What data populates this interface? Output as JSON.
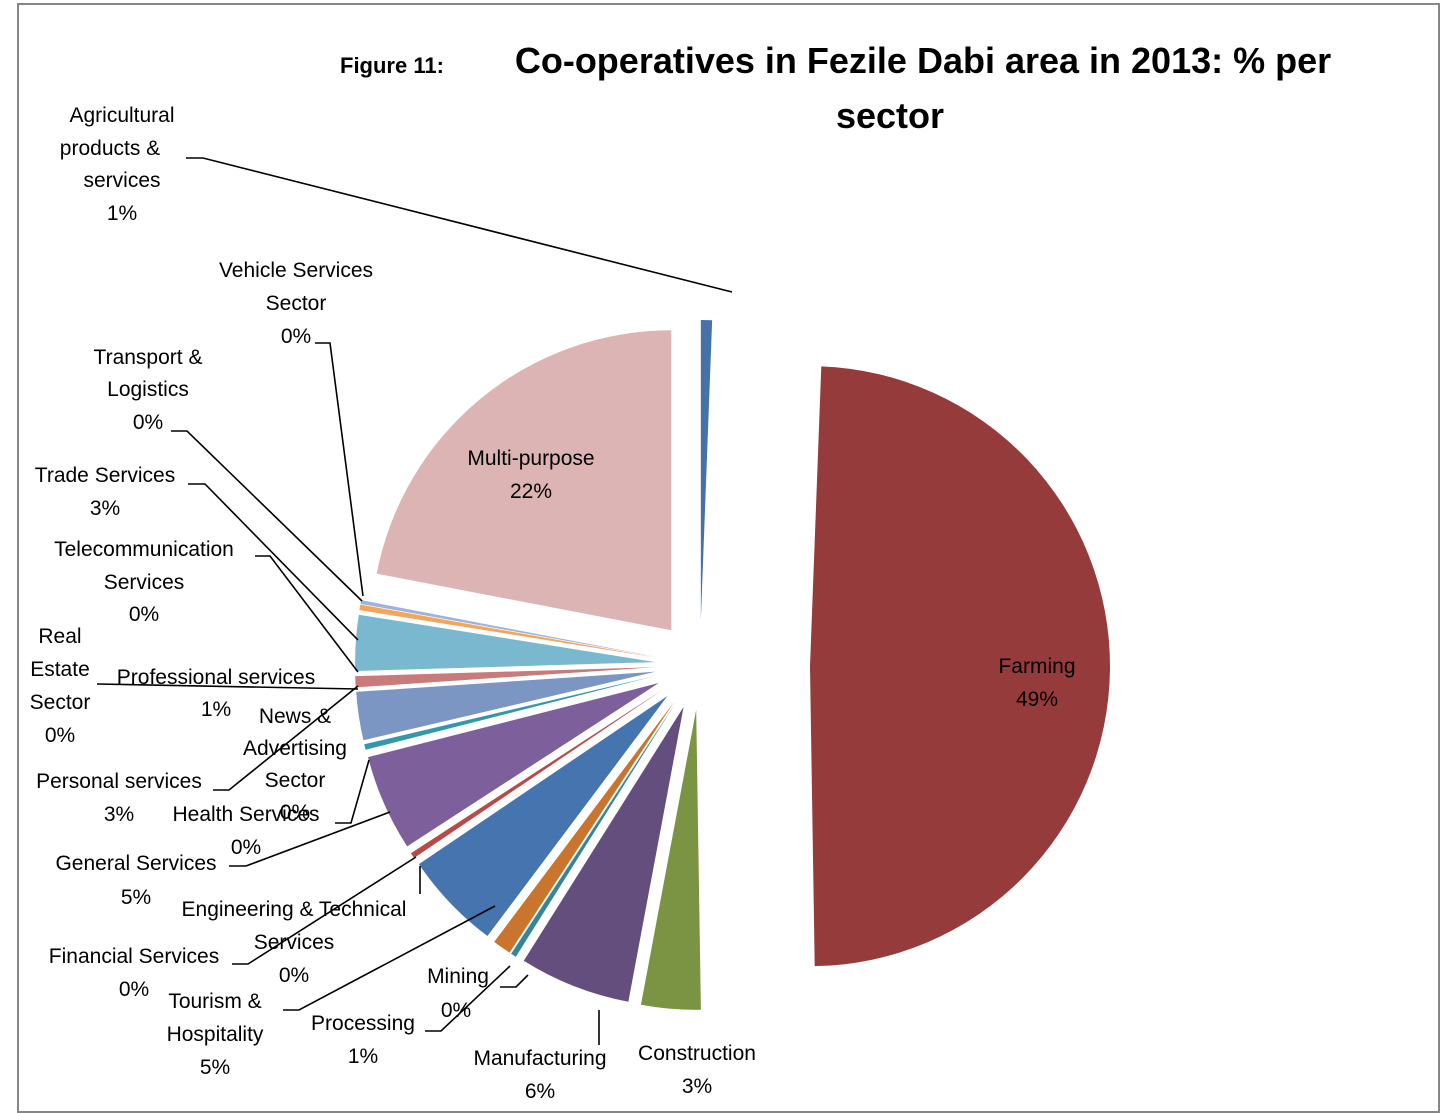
{
  "chart_data": {
    "type": "pie",
    "title_prefix": "Figure 11:",
    "title": "Co-operatives in Fezile Dabi area in 2013: % per sector",
    "title_line1": "Co-operatives in Fezile Dabi area in 2013: % per",
    "title_line2": "sector",
    "slices": [
      {
        "name": "Agricultural products & services",
        "lines": [
          "Agricultural",
          "products &",
          "services"
        ],
        "pct_label": "1%",
        "value": 0.6,
        "color": "#4572A7"
      },
      {
        "name": "Farming",
        "lines": [
          "Farming"
        ],
        "pct_label": "49%",
        "value": 49.2,
        "color": "#953B3B"
      },
      {
        "name": "Construction",
        "lines": [
          "Construction"
        ],
        "pct_label": "3%",
        "value": 3.2,
        "color": "#7A9443"
      },
      {
        "name": "Manufacturing",
        "lines": [
          "Manufacturing"
        ],
        "pct_label": "6%",
        "value": 6.0,
        "color": "#644E7E"
      },
      {
        "name": "Mining",
        "lines": [
          "Mining"
        ],
        "pct_label": "0%",
        "value": 0.3,
        "color": "#31869B"
      },
      {
        "name": "Processing",
        "lines": [
          "Processing"
        ],
        "pct_label": "1%",
        "value": 1.0,
        "color": "#C9752E"
      },
      {
        "name": "Tourism & Hospitality",
        "lines": [
          "Tourism &",
          "Hospitality"
        ],
        "pct_label": "5%",
        "value": 5.3,
        "color": "#4674AF"
      },
      {
        "name": "Financial Services",
        "lines": [
          "Financial Services"
        ],
        "pct_label": "0%",
        "value": 0.0,
        "color": "#A4A4A4"
      },
      {
        "name": "Engineering & Technical Services",
        "lines": [
          "Engineering & Technical",
          "Services"
        ],
        "pct_label": "0%",
        "value": 0.3,
        "color": "#B84A48"
      },
      {
        "name": "General Services",
        "lines": [
          "General Services"
        ],
        "pct_label": "5%",
        "value": 5.2,
        "color": "#7C5F9B"
      },
      {
        "name": "Health Services",
        "lines": [
          "Health Services"
        ],
        "pct_label": "0%",
        "value": 0.3,
        "color": "#3399AA"
      },
      {
        "name": "Personal services",
        "lines": [
          "Personal services"
        ],
        "pct_label": "3%",
        "value": 2.6,
        "color": "#7B96C2"
      },
      {
        "name": "News & Advertising Sector",
        "lines": [
          "News &",
          "Advertising",
          "Sector"
        ],
        "pct_label": "0%",
        "value": 0.0,
        "color": "#B5C9A0"
      },
      {
        "name": "Professional services",
        "lines": [
          "Professional services"
        ],
        "pct_label": "1%",
        "value": 0.6,
        "color": "#C97B7B"
      },
      {
        "name": "Real Estate Sector",
        "lines": [
          "Real",
          "Estate",
          "Sector"
        ],
        "pct_label": "0%",
        "value": 0.0,
        "color": "#A7B2D6"
      },
      {
        "name": "Telecommunication Services",
        "lines": [
          "Telecommunication",
          "Services"
        ],
        "pct_label": "0%",
        "value": 0.0,
        "color": "#9FB4D1"
      },
      {
        "name": "Trade Services",
        "lines": [
          "Trade Services"
        ],
        "pct_label": "3%",
        "value": 3.0,
        "color": "#7AB8D0"
      },
      {
        "name": "Transport & Logistics",
        "lines": [
          "Transport &",
          "Logistics"
        ],
        "pct_label": "0%",
        "value": 0.3,
        "color": "#F4A55A"
      },
      {
        "name": "Vehicle Services Sector",
        "lines": [
          "Vehicle Services",
          "Sector"
        ],
        "pct_label": "0%",
        "value": 0.2,
        "color": "#9DB3DA"
      },
      {
        "name": "Multi-purpose",
        "lines": [
          "Multi-purpose"
        ],
        "pct_label": "22%",
        "value": 22.0,
        "color": "#DDB4B4"
      }
    ],
    "legend": "none",
    "data_labels": "category name and percentage"
  }
}
